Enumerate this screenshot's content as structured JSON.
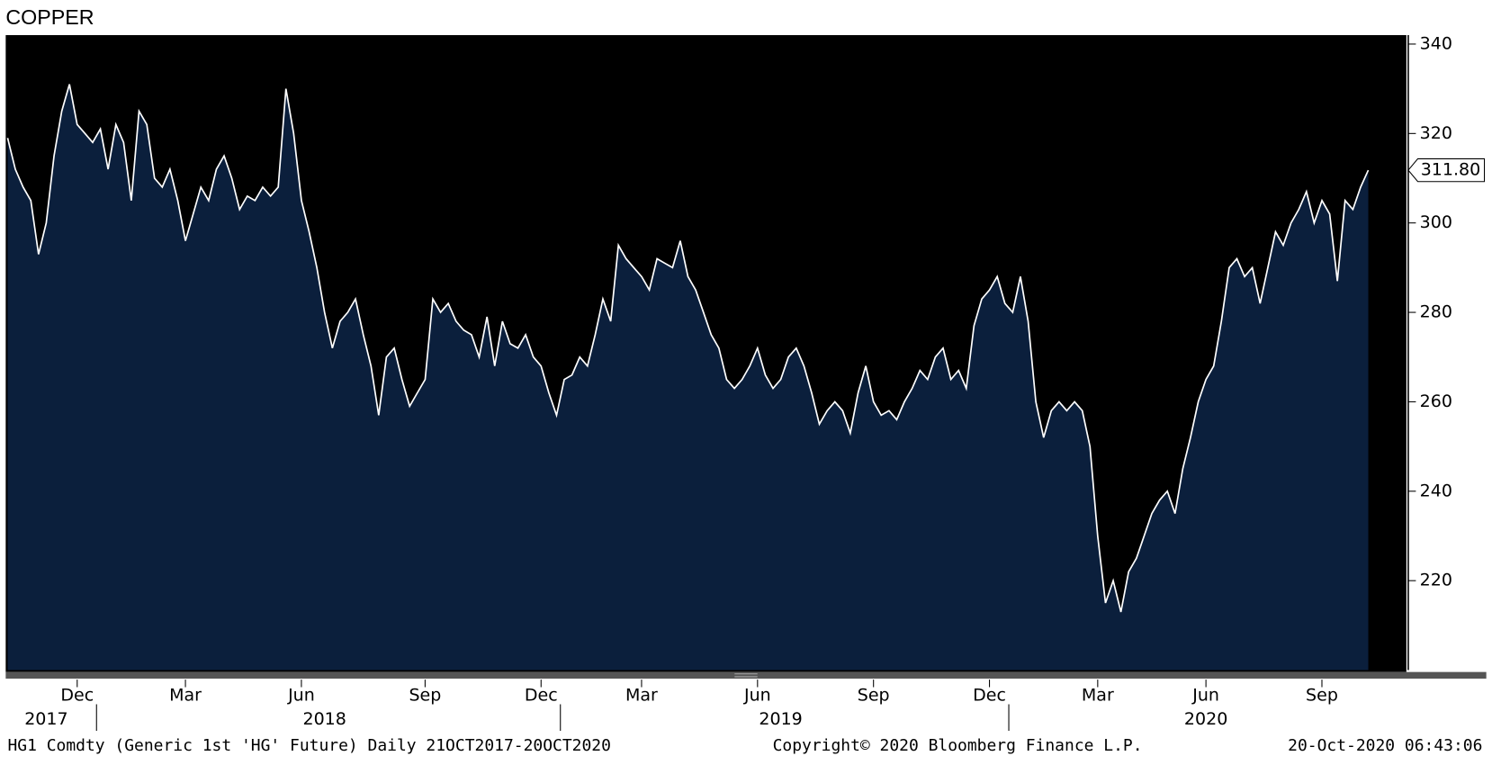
{
  "chart_data": {
    "type": "area",
    "title": "COPPER",
    "values": [
      319,
      312,
      308,
      305,
      293,
      300,
      315,
      325,
      331,
      322,
      320,
      318,
      321,
      312,
      322,
      318,
      305,
      325,
      322,
      310,
      308,
      312,
      305,
      296,
      302,
      308,
      305,
      312,
      315,
      310,
      303,
      306,
      305,
      308,
      306,
      308,
      330,
      320,
      305,
      298,
      290,
      280,
      272,
      278,
      280,
      283,
      275,
      268,
      257,
      270,
      272,
      265,
      259,
      262,
      265,
      283,
      280,
      282,
      278,
      276,
      275,
      270,
      279,
      268,
      278,
      273,
      272,
      275,
      270,
      268,
      262,
      257,
      265,
      266,
      270,
      268,
      275,
      283,
      278,
      295,
      292,
      290,
      288,
      285,
      292,
      291,
      290,
      296,
      288,
      285,
      280,
      275,
      272,
      265,
      263,
      265,
      268,
      272,
      266,
      263,
      265,
      270,
      272,
      268,
      262,
      255,
      258,
      260,
      258,
      253,
      262,
      268,
      260,
      257,
      258,
      256,
      260,
      263,
      267,
      265,
      270,
      272,
      265,
      267,
      263,
      277,
      283,
      285,
      288,
      282,
      280,
      288,
      278,
      260,
      252,
      258,
      260,
      258,
      260,
      258,
      250,
      230,
      215,
      220,
      213,
      222,
      225,
      230,
      235,
      238,
      240,
      235,
      245,
      252,
      260,
      265,
      268,
      278,
      290,
      292,
      288,
      290,
      282,
      290,
      298,
      295,
      300,
      303,
      307,
      300,
      305,
      302,
      287,
      305,
      303,
      308,
      311.8
    ],
    "value_labels": [
      null,
      null,
      null,
      null,
      null,
      null,
      null,
      null,
      null,
      null,
      null,
      null,
      null,
      null,
      null,
      null,
      null,
      null,
      null,
      null,
      null,
      null,
      null,
      null,
      null,
      null,
      null,
      null,
      null,
      null,
      null,
      null,
      null,
      null,
      null,
      null,
      null,
      null,
      null,
      null,
      null,
      null,
      null,
      null,
      null,
      null,
      null,
      null,
      null,
      null,
      null,
      null,
      null,
      null,
      null,
      null,
      null,
      null,
      null,
      null,
      null,
      null,
      null,
      null,
      null,
      null,
      null,
      null,
      null,
      null,
      null,
      null,
      null,
      null,
      null,
      null,
      null,
      null,
      null,
      null,
      null,
      null,
      null,
      null,
      null,
      null,
      null,
      null,
      null,
      null,
      null,
      null,
      null,
      null,
      null,
      null,
      null,
      null,
      null,
      null,
      null,
      null,
      null,
      null,
      null,
      null,
      null,
      null,
      null,
      null,
      null,
      null,
      null,
      null,
      null,
      null,
      null,
      null,
      null,
      null,
      null,
      null,
      null,
      null,
      null,
      null,
      null,
      null,
      null,
      null,
      null,
      null,
      null,
      null,
      null,
      null,
      null,
      null,
      null,
      null,
      null,
      null,
      null,
      null,
      null,
      null,
      null,
      null,
      null,
      null,
      null,
      null,
      null,
      null,
      null,
      null,
      null,
      null,
      null,
      null,
      null,
      null,
      null,
      null,
      null,
      null,
      null,
      null,
      null,
      null,
      null,
      null,
      null,
      null,
      null,
      null,
      "311.80"
    ],
    "line_color": "#ffffff",
    "fill_color": "#0b1f3c",
    "background": "#000000",
    "ylim": [
      200,
      342
    ],
    "yticks": [
      220,
      240,
      260,
      280,
      300,
      320,
      340
    ],
    "xticks": [
      {
        "value": 9,
        "label": "Dec"
      },
      {
        "value": 23,
        "label": "Mar"
      },
      {
        "value": 38,
        "label": "Jun"
      },
      {
        "value": 54,
        "label": "Sep"
      },
      {
        "value": 69,
        "label": "Dec"
      },
      {
        "value": 82,
        "label": "Mar"
      },
      {
        "value": 97,
        "label": "Jun"
      },
      {
        "value": 112,
        "label": "Sep"
      },
      {
        "value": 127,
        "label": "Dec"
      },
      {
        "value": 141,
        "label": "Mar"
      },
      {
        "value": 155,
        "label": "Jun"
      },
      {
        "value": 170,
        "label": "Sep"
      }
    ],
    "year_ticks": [
      {
        "value": 5,
        "label": "2017"
      },
      {
        "value": 41,
        "label": "2018"
      },
      {
        "value": 100,
        "label": "2019"
      },
      {
        "value": 155,
        "label": "2020"
      }
    ],
    "footer_left": "HG1 Comdty (Generic 1st 'HG' Future)  Daily 21OCT2017-20OCT2020",
    "footer_center": "Copyright© 2020 Bloomberg Finance L.P.",
    "footer_right": "20-Oct-2020 06:43:06"
  }
}
